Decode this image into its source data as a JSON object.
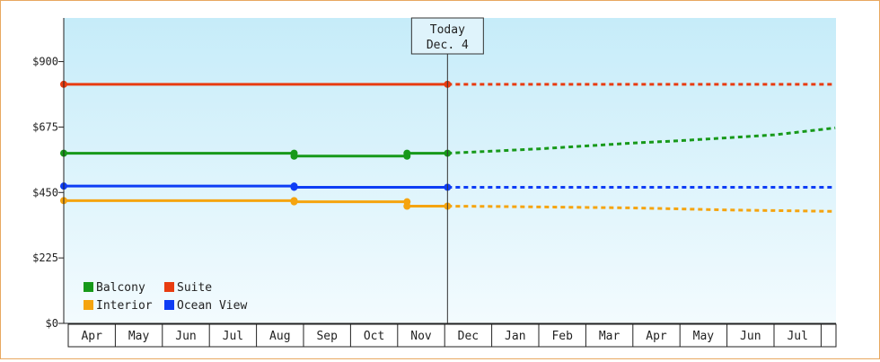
{
  "chart_data": {
    "type": "line",
    "title": "",
    "xlabel": "",
    "ylabel": "",
    "ylim": [
      0,
      1050
    ],
    "y_ticks": [
      0,
      225,
      450,
      675,
      900
    ],
    "y_tick_labels": [
      "$0",
      "$225",
      "$450",
      "$675",
      "$900"
    ],
    "x_tick_labels": [
      "Apr",
      "May",
      "Jun",
      "Jul",
      "Aug",
      "Sep",
      "Oct",
      "Nov",
      "Dec",
      "Jan",
      "Feb",
      "Mar",
      "Apr",
      "May",
      "Jun",
      "Jul"
    ],
    "x_range": [
      "Apr",
      "Aug (next year)"
    ],
    "today_marker": {
      "line1": "Today",
      "line2": "Dec. 4",
      "x": 8.06
    },
    "grid": false,
    "background": "light-blue gradient",
    "legend_position": "bottom-left",
    "legend_order": [
      "Balcony",
      "Suite",
      "Interior",
      "Ocean View"
    ],
    "series": [
      {
        "name": "Suite",
        "color": "#e83c10",
        "actual": [
          [
            0,
            822
          ],
          [
            8.06,
            822
          ]
        ],
        "forecast": [
          [
            8.06,
            822
          ],
          [
            16.3,
            822
          ]
        ]
      },
      {
        "name": "Balcony",
        "color": "#17991a",
        "actual": [
          [
            0,
            585
          ],
          [
            4.8,
            585
          ],
          [
            4.8,
            575
          ],
          [
            7.2,
            575
          ],
          [
            7.2,
            585
          ],
          [
            8.06,
            585
          ]
        ],
        "forecast": [
          [
            8.06,
            585
          ],
          [
            9.0,
            592
          ],
          [
            10,
            600
          ],
          [
            11,
            610
          ],
          [
            12,
            620
          ],
          [
            13,
            628
          ],
          [
            14,
            638
          ],
          [
            15,
            648
          ],
          [
            16.3,
            672
          ]
        ]
      },
      {
        "name": "Ocean View",
        "color": "#0e3df5",
        "actual": [
          [
            0,
            472
          ],
          [
            4.8,
            472
          ],
          [
            4.8,
            468
          ],
          [
            8.06,
            468
          ]
        ],
        "forecast": [
          [
            8.06,
            468
          ],
          [
            16.3,
            468
          ]
        ]
      },
      {
        "name": "Interior",
        "color": "#f5a40f",
        "actual": [
          [
            0,
            422
          ],
          [
            4.8,
            422
          ],
          [
            4.8,
            418
          ],
          [
            7.2,
            418
          ],
          [
            7.2,
            403
          ],
          [
            8.06,
            403
          ]
        ],
        "forecast": [
          [
            8.06,
            403
          ],
          [
            9.0,
            402
          ],
          [
            12,
            397
          ],
          [
            14,
            390
          ],
          [
            16.3,
            385
          ]
        ]
      }
    ]
  }
}
